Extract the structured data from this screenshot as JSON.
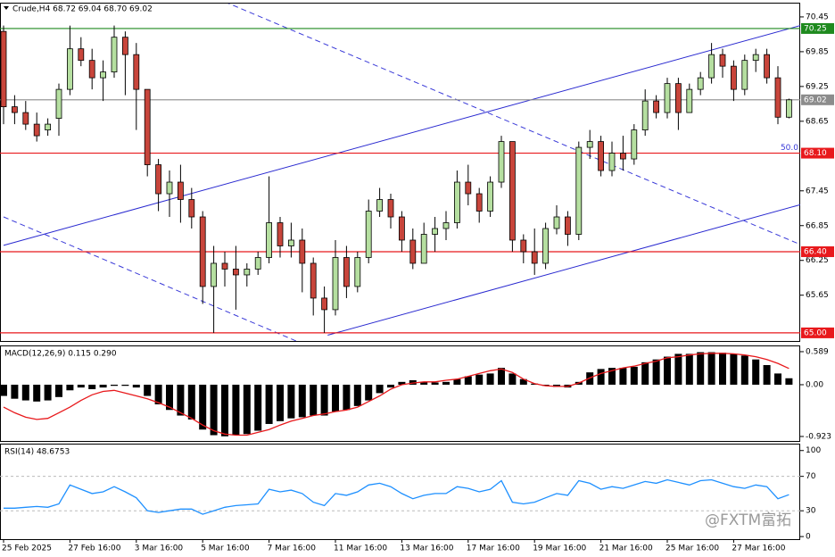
{
  "chart_data": [
    {
      "type": "candlestick",
      "title": "Crude,H4 68.72 69.04 68.70 69.02",
      "categories": [
        "25 Feb 2025",
        null,
        null,
        null,
        null,
        null,
        "27 Feb 16:00",
        null,
        null,
        null,
        null,
        null,
        "3 Mar 16:00",
        null,
        null,
        null,
        null,
        null,
        "5 Mar 16:00",
        null,
        null,
        null,
        null,
        null,
        "7 Mar 16:00",
        null,
        null,
        null,
        null,
        null,
        "11 Mar 16:00",
        null,
        null,
        null,
        null,
        null,
        "13 Mar 16:00",
        null,
        null,
        null,
        null,
        null,
        "17 Mar 16:00",
        null,
        null,
        null,
        null,
        null,
        "19 Mar 16:00",
        null,
        null,
        null,
        null,
        null,
        "21 Mar 16:00",
        null,
        null,
        null,
        null,
        null,
        "25 Mar 16:00",
        null,
        null,
        null,
        null,
        null,
        "27 Mar 16:00",
        null,
        null,
        null,
        null,
        null
      ],
      "open": [
        70.2,
        68.9,
        68.8,
        68.6,
        68.5,
        68.7,
        69.2,
        69.9,
        69.7,
        69.4,
        69.5,
        70.1,
        69.8,
        69.2,
        67.9,
        67.4,
        67.6,
        67.3,
        67.0,
        65.8,
        66.2,
        66.1,
        66.0,
        66.1,
        66.3,
        66.9,
        66.5,
        66.6,
        66.2,
        65.6,
        65.4,
        66.3,
        65.8,
        66.3,
        67.1,
        67.3,
        67.0,
        66.6,
        66.2,
        66.7,
        66.8,
        66.9,
        67.6,
        67.4,
        67.1,
        67.6,
        68.3,
        66.6,
        66.4,
        66.2,
        66.8,
        67.0,
        66.7,
        68.2,
        68.3,
        67.8,
        68.1,
        68.0,
        68.5,
        69.0,
        68.8,
        69.3,
        68.8,
        69.2,
        69.4,
        69.8,
        69.6,
        69.2,
        69.7,
        69.8,
        69.4,
        68.72
      ],
      "high": [
        70.3,
        69.1,
        69.0,
        68.8,
        68.7,
        69.3,
        70.3,
        70.1,
        69.9,
        69.7,
        70.3,
        70.2,
        70.0,
        69.2,
        68.0,
        67.8,
        67.9,
        67.5,
        67.1,
        66.5,
        66.4,
        66.5,
        66.2,
        66.4,
        67.7,
        67.0,
        66.9,
        66.8,
        66.3,
        65.8,
        66.6,
        66.5,
        66.4,
        67.3,
        67.5,
        67.4,
        67.1,
        66.8,
        66.9,
        67.0,
        67.1,
        67.8,
        67.9,
        67.5,
        67.7,
        68.4,
        68.3,
        66.7,
        66.8,
        66.9,
        67.2,
        67.1,
        68.3,
        68.5,
        68.4,
        68.3,
        68.4,
        68.6,
        69.2,
        69.1,
        69.4,
        69.4,
        69.3,
        69.5,
        70.0,
        69.9,
        69.7,
        69.8,
        69.9,
        69.9,
        69.6,
        69.04
      ],
      "low": [
        68.6,
        68.6,
        68.5,
        68.3,
        68.4,
        68.4,
        69.1,
        69.6,
        69.2,
        69.0,
        69.4,
        69.1,
        68.5,
        67.7,
        67.1,
        67.0,
        66.9,
        66.8,
        65.5,
        65.0,
        65.8,
        65.4,
        65.8,
        66.0,
        66.2,
        66.3,
        66.3,
        65.7,
        65.3,
        65.0,
        65.3,
        65.6,
        65.7,
        66.2,
        67.0,
        66.8,
        66.4,
        66.1,
        66.2,
        66.4,
        66.6,
        66.8,
        67.2,
        66.9,
        67.0,
        67.5,
        66.4,
        66.2,
        66.0,
        66.1,
        66.7,
        66.5,
        66.6,
        68.0,
        67.7,
        67.7,
        67.8,
        67.9,
        68.4,
        68.7,
        68.7,
        68.5,
        68.8,
        69.1,
        69.3,
        69.4,
        69.0,
        69.1,
        69.5,
        69.3,
        68.6,
        68.7
      ],
      "close": [
        68.9,
        68.8,
        68.6,
        68.4,
        68.6,
        69.2,
        69.9,
        69.7,
        69.4,
        69.5,
        70.1,
        69.8,
        69.2,
        67.9,
        67.4,
        67.6,
        67.3,
        67.0,
        65.8,
        66.2,
        66.1,
        66.0,
        66.1,
        66.3,
        66.9,
        66.5,
        66.6,
        66.2,
        65.6,
        65.4,
        66.3,
        65.8,
        66.3,
        67.1,
        67.3,
        67.0,
        66.6,
        66.2,
        66.7,
        66.8,
        66.9,
        67.6,
        67.4,
        67.1,
        67.6,
        68.3,
        66.6,
        66.4,
        66.2,
        66.8,
        67.0,
        66.7,
        68.2,
        68.3,
        67.8,
        68.1,
        68.0,
        68.5,
        69.0,
        68.8,
        69.3,
        68.8,
        69.2,
        69.4,
        69.8,
        69.6,
        69.2,
        69.7,
        69.8,
        69.4,
        68.72,
        69.02
      ],
      "up_color": "#b5dfa0",
      "down_color": "#c8453b",
      "ylim": [
        64.86,
        70.68
      ],
      "yticks": [
        70.45,
        69.85,
        69.25,
        68.65,
        67.45,
        66.85,
        66.25,
        65.65
      ],
      "levels": [
        {
          "value": 70.25,
          "label": "70.25",
          "color": "#1e8a1e"
        },
        {
          "value": 69.02,
          "label": "69.02",
          "color": "#8c8c8c"
        },
        {
          "value": 68.1,
          "label": "68.10",
          "color": "#e8191c"
        },
        {
          "value": 66.4,
          "label": "66.40",
          "color": "#e8191c"
        },
        {
          "value": 65,
          "label": "65.00",
          "color": "#e8191c"
        }
      ],
      "trendlines": [
        {
          "x": [
            0,
            72.2
          ],
          "values": [
            66.51,
            70.31
          ],
          "color": "#2a2ad0",
          "dashed": false
        },
        {
          "x": [
            29.3,
            72.2
          ],
          "values": [
            64.96,
            67.22
          ],
          "color": "#2a2ad0",
          "dashed": false
        },
        {
          "x": [
            20,
            72.2
          ],
          "values": [
            70.71,
            66.51
          ],
          "color": "#3a3ad8",
          "dashed": true
        },
        {
          "x": [
            0,
            26.45
          ],
          "values": [
            67.0,
            64.86
          ],
          "color": "#3a3ad8",
          "dashed": true
        }
      ],
      "annotation": "50.0",
      "watermark": "@FXTM富拓"
    },
    {
      "type": "bar",
      "title": "MACD(12,26,9) 0.115 0.290",
      "series": [
        {
          "type": "bar",
          "color": "#000000",
          "values": [
            -0.2,
            -0.25,
            -0.28,
            -0.3,
            -0.28,
            -0.22,
            -0.1,
            -0.05,
            -0.08,
            -0.05,
            -0.02,
            -0.02,
            -0.05,
            -0.2,
            -0.35,
            -0.45,
            -0.55,
            -0.62,
            -0.8,
            -0.9,
            -0.92,
            -0.9,
            -0.88,
            -0.82,
            -0.7,
            -0.65,
            -0.6,
            -0.58,
            -0.55,
            -0.55,
            -0.48,
            -0.45,
            -0.38,
            -0.28,
            -0.15,
            -0.05,
            0.05,
            0.08,
            0.05,
            0.04,
            0.05,
            0.1,
            0.15,
            0.18,
            0.2,
            0.3,
            0.2,
            0.1,
            0.02,
            -0.02,
            -0.04,
            -0.05,
            0.05,
            0.22,
            0.28,
            0.3,
            0.3,
            0.32,
            0.4,
            0.45,
            0.5,
            0.55,
            0.55,
            0.58,
            0.58,
            0.57,
            0.55,
            0.52,
            0.45,
            0.35,
            0.2,
            0.115
          ]
        },
        {
          "type": "line",
          "color": "#e8191c",
          "values": [
            -0.4,
            -0.5,
            -0.58,
            -0.62,
            -0.6,
            -0.5,
            -0.4,
            -0.28,
            -0.18,
            -0.12,
            -0.1,
            -0.15,
            -0.2,
            -0.25,
            -0.32,
            -0.4,
            -0.5,
            -0.6,
            -0.72,
            -0.82,
            -0.88,
            -0.9,
            -0.9,
            -0.85,
            -0.8,
            -0.72,
            -0.65,
            -0.6,
            -0.55,
            -0.52,
            -0.48,
            -0.45,
            -0.4,
            -0.3,
            -0.2,
            -0.08,
            0.0,
            0.03,
            0.05,
            0.05,
            0.08,
            0.1,
            0.15,
            0.2,
            0.25,
            0.28,
            0.22,
            0.1,
            0.02,
            -0.02,
            -0.03,
            -0.03,
            0.03,
            0.12,
            0.2,
            0.25,
            0.3,
            0.33,
            0.38,
            0.42,
            0.48,
            0.5,
            0.53,
            0.55,
            0.56,
            0.56,
            0.55,
            0.53,
            0.5,
            0.45,
            0.38,
            0.29
          ]
        }
      ],
      "ylim": [
        -1.003,
        0.684
      ],
      "yticks": [
        0.589,
        {
          "value": 0,
          "label": "0.00"
        },
        -0.923
      ]
    },
    {
      "type": "line",
      "title": "RSI(14) 48.6753",
      "series": [
        {
          "color": "#1e90ff",
          "values": [
            33,
            33,
            34,
            35,
            34,
            38,
            60,
            55,
            50,
            52,
            58,
            52,
            45,
            30,
            28,
            30,
            32,
            32,
            26,
            30,
            34,
            36,
            37,
            38,
            55,
            52,
            54,
            50,
            40,
            36,
            50,
            48,
            52,
            60,
            62,
            58,
            50,
            44,
            48,
            50,
            50,
            58,
            56,
            52,
            55,
            65,
            40,
            38,
            40,
            45,
            50,
            48,
            65,
            62,
            55,
            58,
            56,
            60,
            64,
            62,
            66,
            63,
            60,
            65,
            66,
            62,
            58,
            56,
            60,
            58,
            44,
            48.6753
          ]
        }
      ],
      "ylim": [
        -3,
        107
      ],
      "yticks": [
        100,
        70,
        30,
        0
      ],
      "levels": [
        70,
        30
      ]
    }
  ]
}
